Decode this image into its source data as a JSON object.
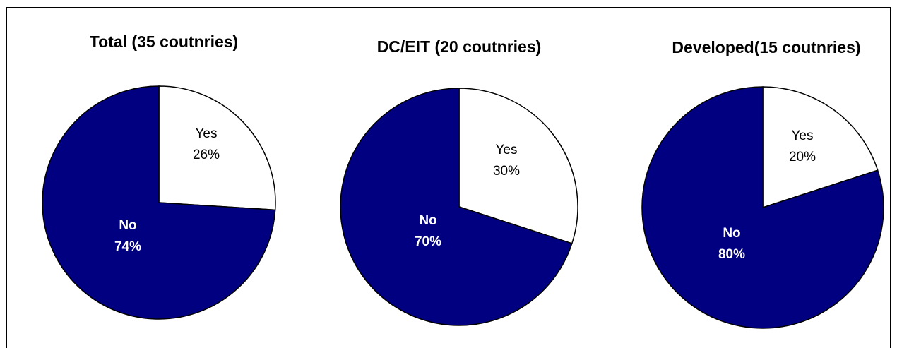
{
  "chart_data": [
    {
      "type": "pie",
      "title": "Total (35 coutnries)",
      "slices": [
        {
          "label": "Yes",
          "value": 26,
          "value_label": "26%",
          "color": "#ffffff",
          "text_color": "#000000"
        },
        {
          "label": "No",
          "value": 74,
          "value_label": "74%",
          "color": "#000080",
          "text_color": "#ffffff"
        }
      ]
    },
    {
      "type": "pie",
      "title": "DC/EIT (20 coutnries)",
      "slices": [
        {
          "label": "Yes",
          "value": 30,
          "value_label": "30%",
          "color": "#ffffff",
          "text_color": "#000000"
        },
        {
          "label": "No",
          "value": 70,
          "value_label": "70%",
          "color": "#000080",
          "text_color": "#ffffff"
        }
      ]
    },
    {
      "type": "pie",
      "title": "Developed(15 coutnries)",
      "slices": [
        {
          "label": "Yes",
          "value": 20,
          "value_label": "20%",
          "color": "#ffffff",
          "text_color": "#000000"
        },
        {
          "label": "No",
          "value": 80,
          "value_label": "80%",
          "color": "#000080",
          "text_color": "#ffffff"
        }
      ]
    }
  ]
}
